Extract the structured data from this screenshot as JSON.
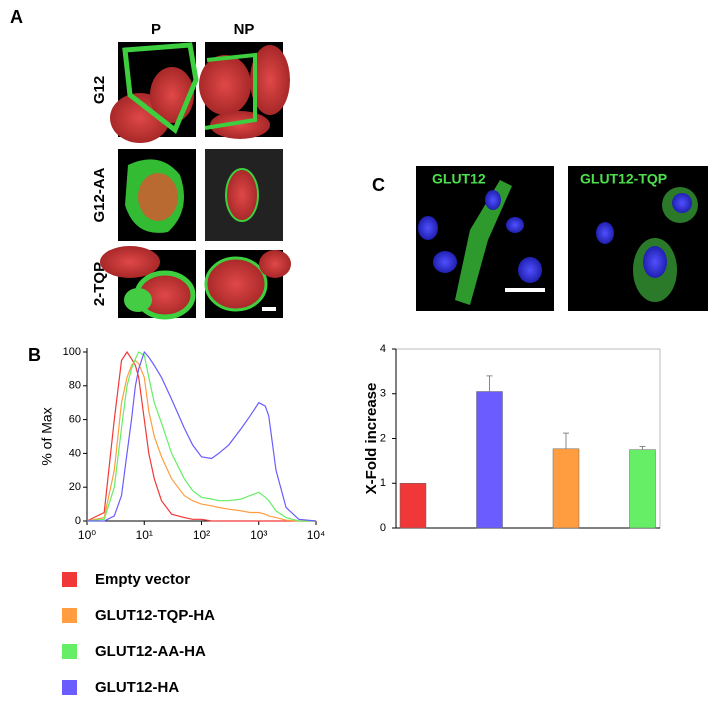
{
  "panel_labels": [
    "A",
    "B",
    "C"
  ],
  "panel_a": {
    "columns": [
      "P",
      "NP"
    ],
    "rows": [
      "G12",
      "G12-AA",
      "2-TQP"
    ]
  },
  "panel_c": {
    "image_labels": [
      "GLUT12",
      "GLUT12-TQP"
    ]
  },
  "chart_data": [
    {
      "type": "line",
      "ylabel": "% of Max",
      "log_x": true,
      "x": [
        1,
        2,
        3,
        4,
        5,
        6,
        7,
        8,
        10,
        12,
        15,
        20,
        30,
        50,
        70,
        100,
        150,
        200,
        300,
        500,
        700,
        1000,
        1300,
        1500,
        2000,
        3000,
        5000,
        10000
      ],
      "xlim": [
        1,
        10000
      ],
      "xticks": [
        {
          "value": 1,
          "label": "10⁰"
        },
        {
          "value": 10,
          "label": "10¹"
        },
        {
          "value": 100,
          "label": "10²"
        },
        {
          "value": 1000,
          "label": "10³"
        },
        {
          "value": 10000,
          "label": "10⁴"
        }
      ],
      "ylim": [
        0,
        100
      ],
      "yticks": [
        0,
        20,
        40,
        60,
        80,
        100
      ],
      "series": [
        {
          "name": "Empty vector",
          "color": "#f03838",
          "values": [
            0,
            5,
            60,
            95,
            100,
            96,
            92,
            85,
            60,
            40,
            25,
            12,
            4,
            2,
            1,
            1,
            0,
            0,
            0,
            0,
            0,
            0,
            0,
            0,
            0,
            0,
            0,
            0
          ]
        },
        {
          "name": "GLUT12-TQP-HA",
          "color": "#ff9d40",
          "values": [
            0,
            2,
            30,
            70,
            85,
            92,
            95,
            93,
            85,
            65,
            50,
            38,
            25,
            15,
            12,
            10,
            9,
            8,
            7,
            6,
            5,
            5,
            4,
            3,
            2,
            0.5,
            0,
            0
          ]
        },
        {
          "name": "GLUT12-AA-HA",
          "color": "#66ee66",
          "values": [
            0,
            1,
            20,
            55,
            80,
            90,
            96,
            100,
            98,
            85,
            70,
            58,
            40,
            25,
            18,
            14,
            13,
            12,
            12,
            13,
            15,
            17,
            14,
            12,
            6,
            2,
            0,
            0
          ]
        },
        {
          "name": "GLUT12-HA",
          "color": "#6a5cff",
          "values": [
            0,
            0,
            3,
            15,
            40,
            60,
            80,
            90,
            100,
            97,
            92,
            85,
            72,
            55,
            45,
            38,
            37,
            40,
            45,
            55,
            62,
            70,
            68,
            62,
            30,
            8,
            1,
            0
          ]
        }
      ]
    },
    {
      "type": "bar",
      "ylabel": "X-Fold increase",
      "categories": [
        null,
        null,
        null,
        null
      ],
      "values": [
        1,
        3.05,
        1.77,
        1.75
      ],
      "errors": [
        null,
        0.35,
        0.35,
        0.07
      ],
      "colors": [
        "#f03838",
        "#6a5cff",
        "#ff9d40",
        "#66ee66"
      ],
      "ylim": [
        0,
        4
      ],
      "yticks": [
        0,
        1,
        2,
        3,
        4
      ]
    }
  ]
}
